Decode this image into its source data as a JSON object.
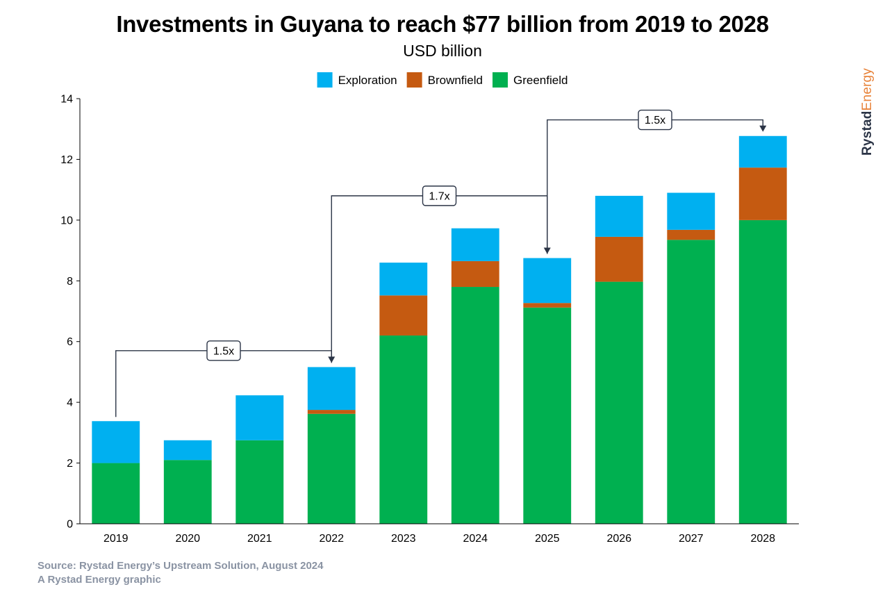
{
  "chart_data": {
    "type": "bar",
    "stacked": true,
    "title": "Investments in Guyana to reach $77 billion from 2019 to 2028",
    "subtitle": "USD billion",
    "categories": [
      "2019",
      "2020",
      "2021",
      "2022",
      "2023",
      "2024",
      "2025",
      "2026",
      "2027",
      "2028"
    ],
    "series": [
      {
        "name": "Greenfield",
        "color": "#00b050",
        "values": [
          2.0,
          2.1,
          2.75,
          3.62,
          6.2,
          7.8,
          7.12,
          7.97,
          9.35,
          10.0
        ]
      },
      {
        "name": "Brownfield",
        "color": "#c55a11",
        "values": [
          0.0,
          0.0,
          0.0,
          0.13,
          1.32,
          0.85,
          0.15,
          1.48,
          0.33,
          1.73
        ]
      },
      {
        "name": "Exploration",
        "color": "#00b0f0",
        "values": [
          1.38,
          0.65,
          1.48,
          1.41,
          1.08,
          1.08,
          1.48,
          1.35,
          1.22,
          1.04
        ]
      }
    ],
    "legend_order": [
      "Exploration",
      "Brownfield",
      "Greenfield"
    ],
    "legend_position": "top-center",
    "ylim": [
      0,
      14
    ],
    "yticks": [
      0,
      2,
      4,
      6,
      8,
      10,
      12,
      14
    ],
    "xlabel": "",
    "ylabel": "",
    "grid": false,
    "annotations": [
      {
        "from": "2019",
        "to": "2022",
        "label": "1.5x"
      },
      {
        "from": "2022",
        "to": "2025",
        "label": "1.7x"
      },
      {
        "from": "2025",
        "to": "2028",
        "label": "1.5x"
      }
    ]
  },
  "brand": {
    "part1": "Rystad",
    "part2": "Energy"
  },
  "footer": {
    "source": "Source: Rystad Energy’s Upstream Solution, August 2024",
    "credit": "A Rystad Energy graphic"
  }
}
